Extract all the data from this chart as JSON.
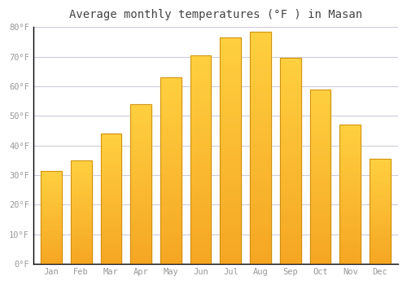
{
  "title": "Average monthly temperatures (°F ) in Masan",
  "months": [
    "Jan",
    "Feb",
    "Mar",
    "Apr",
    "May",
    "Jun",
    "Jul",
    "Aug",
    "Sep",
    "Oct",
    "Nov",
    "Dec"
  ],
  "values": [
    31.5,
    35.0,
    44.0,
    54.0,
    63.0,
    70.5,
    76.5,
    78.5,
    69.5,
    59.0,
    47.0,
    35.5
  ],
  "bar_color_bottom": "#F5A623",
  "bar_color_top": "#FFD040",
  "bar_edge_color": "#C8870A",
  "background_color": "#FFFFFF",
  "plot_bg_color": "#FFFFFF",
  "grid_color": "#CCCCDD",
  "tick_label_color": "#999999",
  "title_color": "#444444",
  "spine_color": "#000000",
  "ylim": [
    0,
    80
  ],
  "yticks": [
    0,
    10,
    20,
    30,
    40,
    50,
    60,
    70,
    80
  ],
  "ytick_labels": [
    "0°F",
    "10°F",
    "20°F",
    "30°F",
    "40°F",
    "50°F",
    "60°F",
    "70°F",
    "80°F"
  ],
  "bar_width": 0.7,
  "title_fontsize": 10,
  "tick_fontsize": 7.5
}
